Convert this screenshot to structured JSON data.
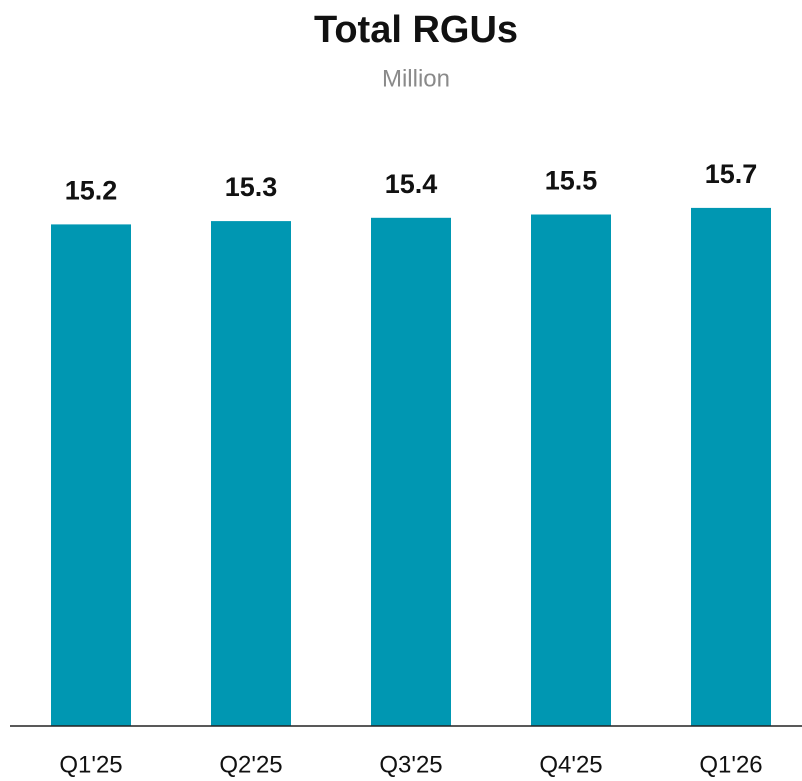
{
  "chart_data": {
    "type": "bar",
    "title": "Total RGUs",
    "subtitle": "Million",
    "categories": [
      "Q1'25",
      "Q2'25",
      "Q3'25",
      "Q4'25",
      "Q1'26"
    ],
    "values": [
      15.2,
      15.3,
      15.4,
      15.5,
      15.7
    ],
    "color": "#0097b2",
    "ylim": [
      0,
      16
    ]
  }
}
